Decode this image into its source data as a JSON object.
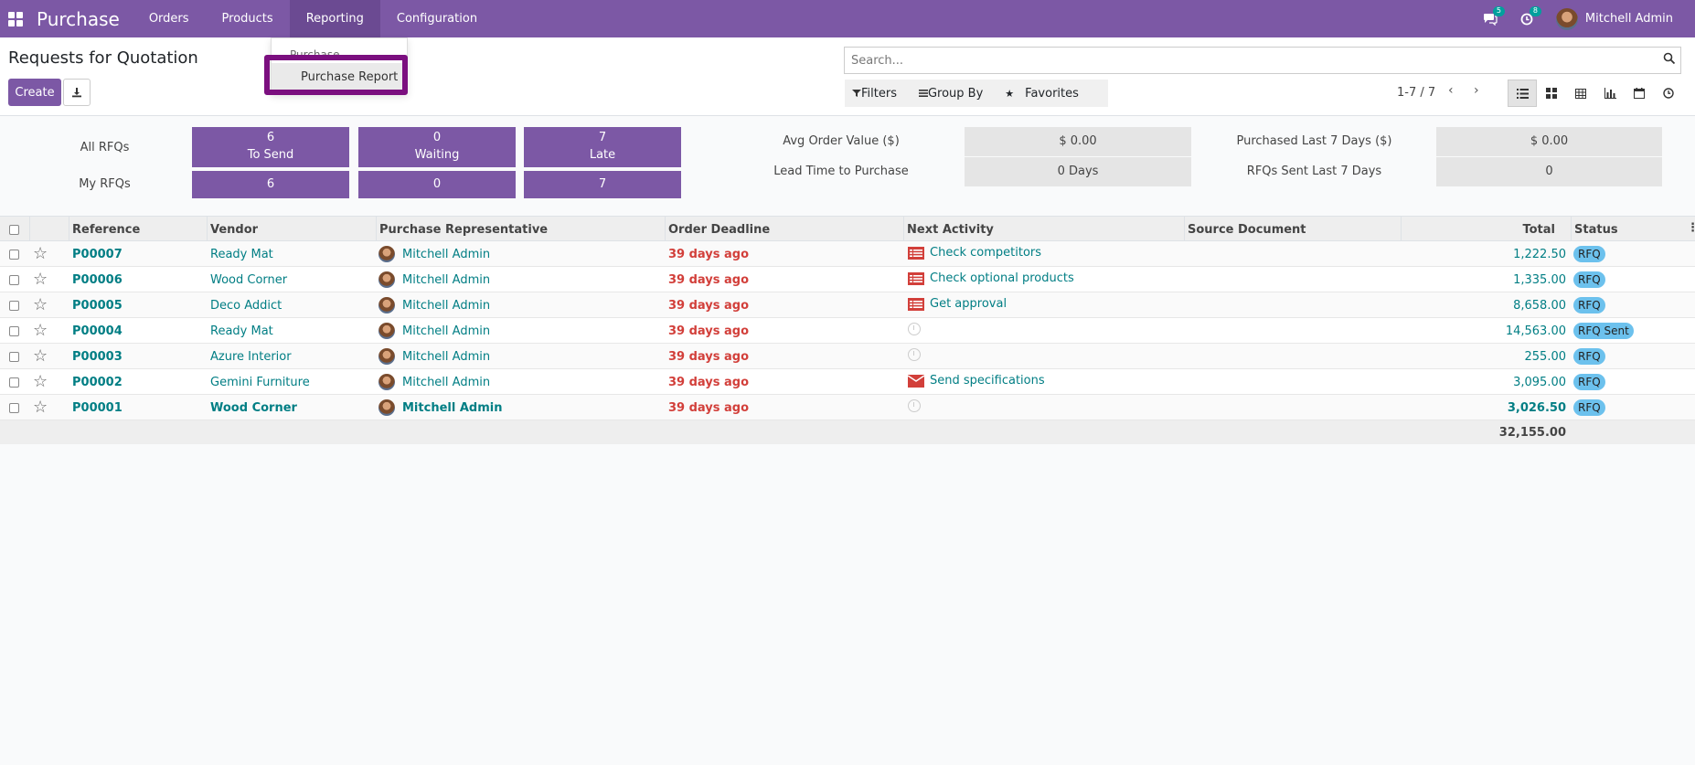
{
  "navbar": {
    "app_name": "Purchase",
    "menu": [
      "Orders",
      "Products",
      "Reporting",
      "Configuration"
    ],
    "messages_count": "5",
    "activities_count": "8",
    "user_name": "Mitchell Admin"
  },
  "dropdown": {
    "section": "Purchase",
    "item": "Purchase Report"
  },
  "control": {
    "title": "Requests for Quotation",
    "create_label": "Create",
    "search_placeholder": "Search...",
    "filters_label": "Filters",
    "groupby_label": "Group By",
    "favorites_label": "Favorites",
    "pager": "1-7 / 7"
  },
  "dashboard": {
    "all_rfqs_label": "All RFQs",
    "my_rfqs_label": "My RFQs",
    "tiles": [
      {
        "all": "6",
        "label": "To Send",
        "my": "6"
      },
      {
        "all": "0",
        "label": "Waiting",
        "my": "0"
      },
      {
        "all": "7",
        "label": "Late",
        "my": "7"
      }
    ],
    "stats": {
      "avg_order_label": "Avg Order Value ($)",
      "avg_order_value": "$ 0.00",
      "lead_time_label": "Lead Time to Purchase",
      "lead_time_value": "0  Days",
      "purchased_label": "Purchased Last 7 Days ($)",
      "purchased_value": "$ 0.00",
      "rfqs_sent_label": "RFQs Sent Last 7 Days",
      "rfqs_sent_value": "0"
    }
  },
  "table": {
    "headers": [
      "Reference",
      "Vendor",
      "Purchase Representative",
      "Order Deadline",
      "Next Activity",
      "Source Document",
      "Total",
      "Status"
    ],
    "rows": [
      {
        "ref": "P00007",
        "vendor": "Ready Mat",
        "rep": "Mitchell Admin",
        "deadline": "39 days ago",
        "activity": "Check competitors",
        "activity_icon": "tasks-icon",
        "total": "1,222.50",
        "status": "RFQ"
      },
      {
        "ref": "P00006",
        "vendor": "Wood Corner",
        "rep": "Mitchell Admin",
        "deadline": "39 days ago",
        "activity": "Check optional products",
        "activity_icon": "tasks-icon",
        "total": "1,335.00",
        "status": "RFQ"
      },
      {
        "ref": "P00005",
        "vendor": "Deco Addict",
        "rep": "Mitchell Admin",
        "deadline": "39 days ago",
        "activity": "Get approval",
        "activity_icon": "tasks-icon",
        "total": "8,658.00",
        "status": "RFQ"
      },
      {
        "ref": "P00004",
        "vendor": "Ready Mat",
        "rep": "Mitchell Admin",
        "deadline": "39 days ago",
        "activity": "",
        "activity_icon": "clock-icon",
        "total": "14,563.00",
        "status": "RFQ Sent"
      },
      {
        "ref": "P00003",
        "vendor": "Azure Interior",
        "rep": "Mitchell Admin",
        "deadline": "39 days ago",
        "activity": "",
        "activity_icon": "clock-icon",
        "total": "255.00",
        "status": "RFQ"
      },
      {
        "ref": "P00002",
        "vendor": "Gemini Furniture",
        "rep": "Mitchell Admin",
        "deadline": "39 days ago",
        "activity": "Send specifications",
        "activity_icon": "envelope-icon",
        "total": "3,095.00",
        "status": "RFQ"
      },
      {
        "ref": "P00001",
        "vendor": "Wood Corner",
        "rep": "Mitchell Admin",
        "deadline": "39 days ago",
        "activity": "",
        "activity_icon": "clock-icon",
        "total": "3,026.50",
        "status": "RFQ"
      }
    ],
    "grand_total": "32,155.00"
  },
  "colors": {
    "brand": "#7c58a5",
    "link": "#017e84",
    "overdue": "#d23f3a",
    "status_badge": "#6cc1ed",
    "highlight": "#7b0f7f"
  }
}
